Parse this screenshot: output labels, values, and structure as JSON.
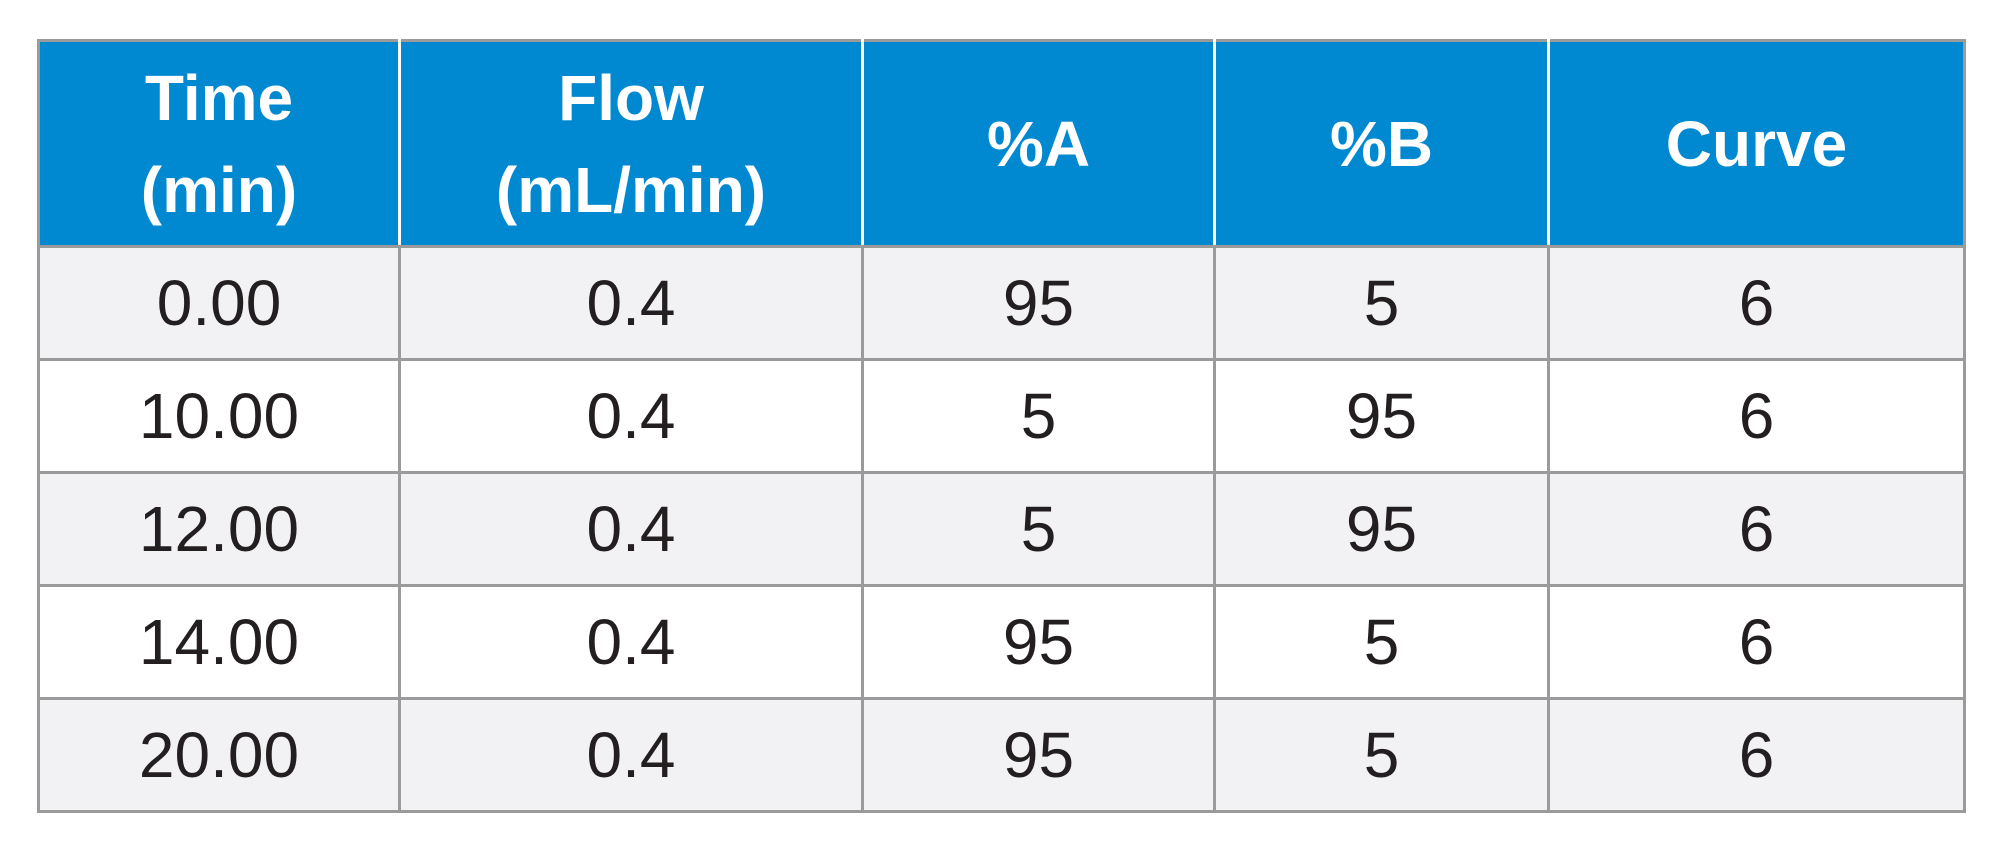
{
  "chart_data": {
    "type": "table",
    "columns": [
      {
        "line1": "Time",
        "line2": "(min)"
      },
      {
        "line1": "Flow",
        "line2": "(mL/min)"
      },
      {
        "line1": "%A",
        "line2": ""
      },
      {
        "line1": "%B",
        "line2": ""
      },
      {
        "line1": "Curve",
        "line2": ""
      }
    ],
    "rows": [
      [
        "0.00",
        "0.4",
        "95",
        "5",
        "6"
      ],
      [
        "10.00",
        "0.4",
        "5",
        "95",
        "6"
      ],
      [
        "12.00",
        "0.4",
        "5",
        "95",
        "6"
      ],
      [
        "14.00",
        "0.4",
        "95",
        "5",
        "6"
      ],
      [
        "20.00",
        "0.4",
        "95",
        "5",
        "6"
      ]
    ]
  },
  "colors": {
    "header_background": "#0088d1",
    "header_text": "#ffffff",
    "row_odd_background": "#f2f2f4",
    "row_even_background": "#ffffff",
    "grid_line": "#9b9b9b",
    "body_text": "#231f20"
  }
}
